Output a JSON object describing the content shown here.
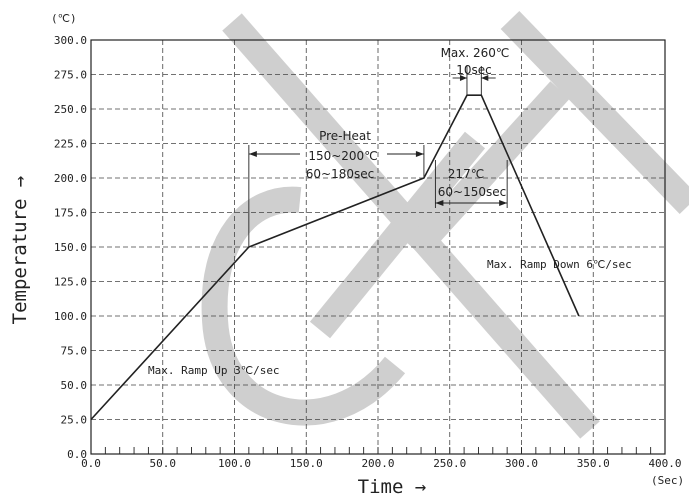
{
  "chart_data": {
    "type": "line",
    "xlabel": "Time →",
    "ylabel": "Temperature →",
    "x_unit": "(Sec)",
    "y_unit": "(℃)",
    "xlim": [
      0,
      400
    ],
    "ylim": [
      0,
      300
    ],
    "x_ticks": [
      "0.0",
      "50.0",
      "100.0",
      "150.0",
      "200.0",
      "250.0",
      "300.0",
      "350.0",
      "400.0"
    ],
    "y_ticks": [
      "0.0",
      "25.0",
      "50.0",
      "75.0",
      "100.0",
      "125.0",
      "150.0",
      "175.0",
      "200.0",
      "225.0",
      "250.0",
      "275.0",
      "300.0"
    ],
    "grid": true,
    "series": [
      {
        "x": [
          0,
          110,
          232,
          262,
          272,
          340
        ],
        "y": [
          25,
          150,
          200,
          260,
          260,
          100
        ]
      }
    ],
    "annotations": {
      "preheat_title": "Pre-Heat",
      "preheat_range": "150~200℃",
      "preheat_time": "60~180sec",
      "peak_max": "Max. 260℃",
      "peak_time": "10sec",
      "liquidus_temp": "217℃",
      "liquidus_time": "60~150sec",
      "ramp_up": "Max. Ramp Up 3℃/sec",
      "ramp_down": "Max. Ramp Down 6℃/sec"
    },
    "colors": {
      "line": "#222222",
      "grid": "#444444",
      "watermark": "#cfcfcf"
    }
  }
}
